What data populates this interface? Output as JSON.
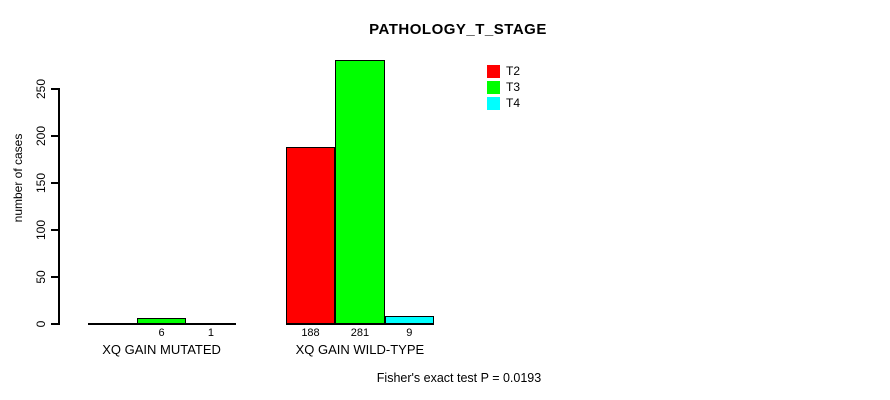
{
  "title": "PATHOLOGY_T_STAGE",
  "y_axis": {
    "label": "number of cases"
  },
  "footer": {
    "text": "Fisher's exact test P = 0.0193"
  },
  "chart_data": {
    "type": "bar",
    "title": "PATHOLOGY_T_STAGE",
    "categories": [
      "XQ GAIN MUTATED",
      "XQ GAIN WILD-TYPE"
    ],
    "series": [
      {
        "name": "T2",
        "color": "#FF0000",
        "values": [
          0,
          188
        ]
      },
      {
        "name": "T3",
        "color": "#00FF00",
        "values": [
          6,
          281
        ]
      },
      {
        "name": "T4",
        "color": "#00FFFF",
        "values": [
          1,
          9
        ]
      }
    ],
    "bar_value_labels": [
      [
        "",
        "6",
        "1"
      ],
      [
        "188",
        "281",
        "9"
      ]
    ],
    "xlabel": "",
    "ylabel": "number of cases",
    "yticks": [
      0,
      50,
      100,
      150,
      200,
      250
    ],
    "ylim": [
      0,
      290
    ],
    "grid": false,
    "legend_position": "top-right",
    "legend_entries": [
      "T2",
      "T3",
      "T4"
    ],
    "annotation": "Fisher's exact test P = 0.0193",
    "bars_outlined": true,
    "outline_color": "#000000"
  }
}
